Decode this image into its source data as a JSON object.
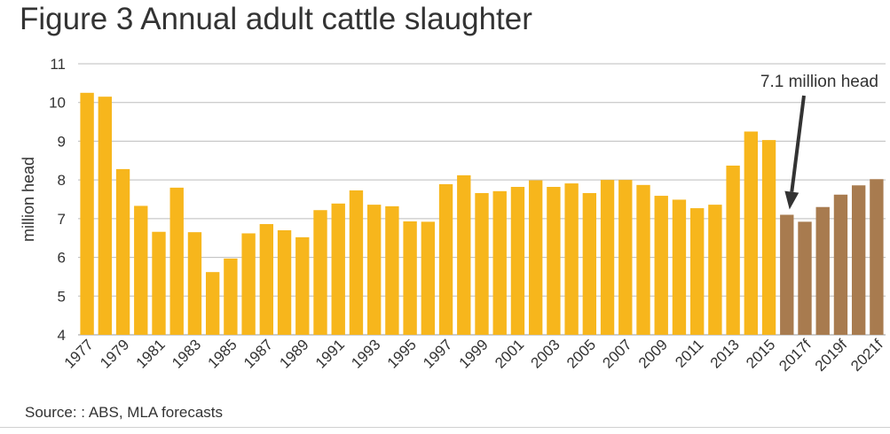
{
  "title": "Figure 3 Annual adult cattle slaughter",
  "source": "Source: : ABS, MLA forecasts",
  "colors": {
    "actual": "#F7B61C",
    "forecast": "#A87B4F",
    "grid": "#bdbdbd",
    "arrow": "#333333"
  },
  "chart_data": {
    "type": "bar",
    "ylabel": "million head",
    "xlabel": "",
    "ylim": [
      4,
      11
    ],
    "yticks": [
      4,
      5,
      6,
      7,
      8,
      9,
      10,
      11
    ],
    "grid": true,
    "categories": [
      "1977",
      "1978",
      "1979",
      "1980",
      "1981",
      "1982",
      "1983",
      "1984",
      "1985",
      "1986",
      "1987",
      "1988",
      "1989",
      "1990",
      "1991",
      "1992",
      "1993",
      "1994",
      "1995",
      "1996",
      "1997",
      "1998",
      "1999",
      "2000",
      "2001",
      "2002",
      "2003",
      "2004",
      "2005",
      "2006",
      "2007",
      "2008",
      "2009",
      "2010",
      "2011",
      "2012",
      "2013",
      "2014",
      "2015",
      "2016",
      "2017f",
      "2018f",
      "2019f",
      "2020f",
      "2021f"
    ],
    "tick_labels": [
      "1977",
      "",
      "1979",
      "",
      "1981",
      "",
      "1983",
      "",
      "1985",
      "",
      "1987",
      "",
      "1989",
      "",
      "1991",
      "",
      "1993",
      "",
      "1995",
      "",
      "1997",
      "",
      "1999",
      "",
      "2001",
      "",
      "2003",
      "",
      "2005",
      "",
      "2007",
      "",
      "2009",
      "",
      "2011",
      "",
      "2013",
      "",
      "2015",
      "",
      "2017f",
      "",
      "2019f",
      "",
      "2021f"
    ],
    "series": [
      {
        "values": [
          10.25,
          10.15,
          8.28,
          7.33,
          6.66,
          7.8,
          6.65,
          5.62,
          5.97,
          6.62,
          6.86,
          6.7,
          6.52,
          7.22,
          7.39,
          7.73,
          7.36,
          7.32,
          6.93,
          6.92,
          7.89,
          8.12,
          7.66,
          7.71,
          7.82,
          7.99,
          7.82,
          7.91,
          7.66,
          8.0,
          8.0,
          7.87,
          7.59,
          7.49,
          7.27,
          7.36,
          8.37,
          9.25,
          9.03,
          7.1,
          6.92,
          7.3,
          7.62,
          7.86,
          8.02
        ]
      }
    ],
    "forecast_start_index": 39,
    "annotations": [
      {
        "text": "7.1 million head",
        "category": "2016",
        "value": 7.1
      }
    ]
  }
}
